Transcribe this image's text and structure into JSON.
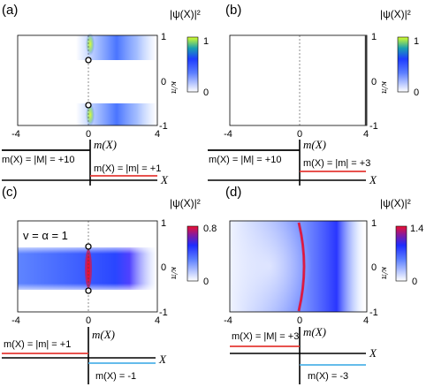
{
  "panels": [
    {
      "label": "(a)",
      "colorbar": {
        "title": "|ψ(X)|²",
        "max_label": "1",
        "min_label": "0"
      },
      "x_ticks": [
        "-4",
        "0",
        "4"
      ],
      "y_ticks": [
        "1",
        "0",
        "-1"
      ],
      "y_label": "κ/π",
      "mass_axis_label": "m(X)",
      "x_axis_label": "X",
      "left_mass": "m(X) = |M| = +10",
      "right_mass": "m(X) = |m| = +1",
      "annotation": ""
    },
    {
      "label": "(b)",
      "colorbar": {
        "title": "|ψ(X)|²",
        "max_label": "1",
        "min_label": "0"
      },
      "x_ticks": [
        "-4",
        "0",
        "4"
      ],
      "y_ticks": [
        "1",
        "0",
        "-1"
      ],
      "y_label": "κ/π",
      "mass_axis_label": "m(X)",
      "x_axis_label": "X",
      "left_mass": "m(X) = |M| = +10",
      "right_mass": "m(X) = |m| = +3",
      "annotation": ""
    },
    {
      "label": "(c)",
      "colorbar": {
        "title": "|ψ(X)|²",
        "max_label": "0.8",
        "min_label": "0"
      },
      "x_ticks": [
        "-4",
        "0",
        "4"
      ],
      "y_ticks": [
        "1",
        "0",
        "-1"
      ],
      "y_label": "κ/π",
      "mass_axis_label": "m(X)",
      "x_axis_label": "X",
      "left_mass": "m(X) = |m| = +1",
      "right_mass": "m(X) = -1",
      "annotation": "v = α = 1"
    },
    {
      "label": "(d)",
      "colorbar": {
        "title": "|ψ(X)|²",
        "max_label": "1.4",
        "min_label": "0"
      },
      "x_ticks": [
        "-4",
        "0",
        "4"
      ],
      "y_ticks": [
        "1",
        "0",
        "-1"
      ],
      "y_label": "κ/π",
      "mass_axis_label": "m(X)",
      "x_axis_label": "X",
      "left_mass": "m(X) = |M| = +3",
      "right_mass": "m(X) = -3",
      "annotation": ""
    }
  ],
  "colors": {
    "map_blue": "#1f4fff",
    "map_red": "#e0103a",
    "map_yellow": "#d8ff2a",
    "mass_red": "#e53935",
    "mass_cyan": "#4fb3e8",
    "axis": "#000000"
  }
}
